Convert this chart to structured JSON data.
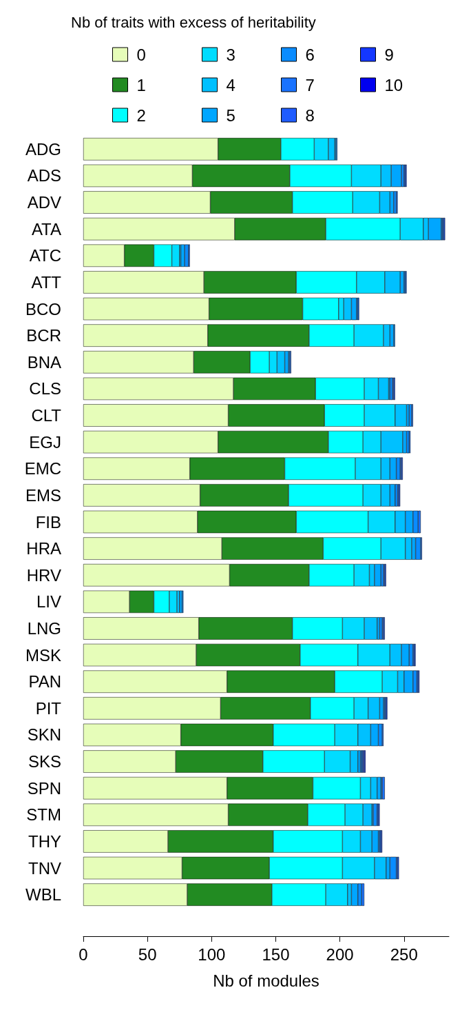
{
  "chart_data": {
    "type": "bar",
    "orientation": "horizontal",
    "stacked": true,
    "xlabel": "Nb of modules",
    "legend_title": "Nb of traits with excess of heritability",
    "legend": "top",
    "grid": false,
    "xlim": [
      0,
      285
    ],
    "xticks": [
      0,
      50,
      100,
      150,
      200,
      250
    ],
    "categories": [
      "ADG",
      "ADS",
      "ADV",
      "ATA",
      "ATC",
      "ATT",
      "BCO",
      "BCR",
      "BNA",
      "CLS",
      "CLT",
      "EGJ",
      "EMC",
      "EMS",
      "FIB",
      "HRA",
      "HRV",
      "LIV",
      "LNG",
      "MSK",
      "PAN",
      "PIT",
      "SKN",
      "SKS",
      "SPN",
      "STM",
      "THY",
      "TNV",
      "WBL"
    ],
    "series": [
      {
        "name": "0",
        "color": "#e6fdb9",
        "values": [
          105,
          85,
          99,
          118,
          32,
          94,
          98,
          97,
          86,
          117,
          113,
          105,
          83,
          91,
          89,
          108,
          114,
          36,
          90,
          88,
          112,
          107,
          76,
          72,
          112,
          113,
          66,
          77,
          81
        ]
      },
      {
        "name": "1",
        "color": "#228b22",
        "values": [
          49,
          76,
          64,
          71,
          23,
          72,
          73,
          79,
          44,
          64,
          75,
          86,
          74,
          69,
          77,
          79,
          62,
          19,
          73,
          81,
          84,
          70,
          72,
          68,
          67,
          62,
          82,
          68,
          66
        ]
      },
      {
        "name": "2",
        "color": "#00ffff",
        "values": [
          26,
          48,
          47,
          58,
          14,
          47,
          28,
          35,
          15,
          38,
          31,
          27,
          55,
          58,
          56,
          45,
          35,
          12,
          39,
          45,
          37,
          34,
          48,
          48,
          37,
          29,
          54,
          57,
          42
        ]
      },
      {
        "name": "3",
        "color": "#00dcff",
        "values": [
          11,
          23,
          21,
          18,
          6,
          22,
          4,
          23,
          6,
          11,
          24,
          14,
          20,
          14,
          21,
          19,
          12,
          6,
          17,
          25,
          12,
          11,
          18,
          20,
          8,
          14,
          14,
          25,
          17
        ]
      },
      {
        "name": "4",
        "color": "#00c0ff",
        "values": [
          5,
          8,
          8,
          4,
          1,
          12,
          6,
          5,
          6,
          8,
          9,
          17,
          7,
          7,
          8,
          5,
          4,
          2,
          10,
          9,
          5,
          9,
          10,
          6,
          5,
          7,
          9,
          9,
          3
        ]
      },
      {
        "name": "5",
        "color": "#00a6ff",
        "values": [
          1,
          8,
          3,
          10,
          3,
          3,
          4,
          3,
          3,
          1,
          2,
          3,
          5,
          4,
          6,
          3,
          5,
          2,
          2,
          6,
          7,
          3,
          6,
          2,
          3,
          1,
          5,
          3,
          5
        ]
      },
      {
        "name": "6",
        "color": "#0a8cff",
        "values": [
          1,
          2,
          2,
          1,
          3,
          1,
          1,
          1,
          1,
          2,
          2,
          2,
          3,
          2,
          4,
          4,
          2,
          1,
          2,
          3,
          3,
          1,
          3,
          1,
          1,
          3,
          1,
          5,
          3
        ]
      },
      {
        "name": "7",
        "color": "#1a73ff",
        "values": [
          0,
          1,
          1,
          1,
          1,
          1,
          1,
          0,
          1,
          1,
          1,
          1,
          1,
          1,
          2,
          1,
          1,
          0,
          1,
          1,
          1,
          1,
          1,
          1,
          2,
          1,
          1,
          1,
          2
        ]
      },
      {
        "name": "8",
        "color": "#1f5cff",
        "values": [
          0,
          1,
          0,
          1,
          0,
          0,
          0,
          0,
          0,
          1,
          0,
          0,
          1,
          1,
          0,
          0,
          1,
          0,
          1,
          1,
          1,
          1,
          0,
          1,
          0,
          1,
          1,
          1,
          0
        ]
      },
      {
        "name": "9",
        "color": "#1437ff",
        "values": [
          0,
          0,
          0,
          0,
          0,
          0,
          0,
          0,
          0,
          0,
          0,
          0,
          0,
          0,
          0,
          0,
          0,
          0,
          0,
          0,
          0,
          0,
          0,
          1,
          0,
          0,
          0,
          0,
          0
        ]
      },
      {
        "name": "10",
        "color": "#0000f0",
        "values": [
          0,
          0,
          0,
          0,
          0,
          0,
          0,
          0,
          0,
          0,
          0,
          0,
          0,
          0,
          0,
          0,
          0,
          0,
          0,
          0,
          0,
          0,
          0,
          0,
          0,
          0,
          0,
          0,
          0
        ]
      }
    ]
  }
}
